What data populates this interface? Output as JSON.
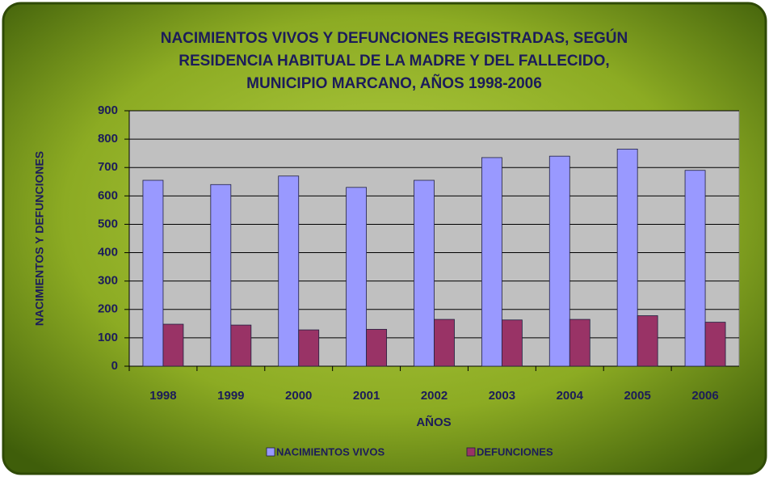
{
  "chart_data": {
    "type": "bar",
    "title": [
      "NACIMIENTOS VIVOS Y DEFUNCIONES REGISTRADAS, SEGÚN",
      "RESIDENCIA HABITUAL DE LA MADRE Y DEL FALLECIDO,",
      "MUNICIPIO MARCANO, AÑOS 1998-2006"
    ],
    "x_label": "AÑOS",
    "y_label": "NACIMIENTOS Y DEFUNCIONES",
    "categories": [
      "1998",
      "1999",
      "2000",
      "2001",
      "2002",
      "2003",
      "2004",
      "2005",
      "2006"
    ],
    "series": [
      {
        "name": "NACIMIENTOS VIVOS",
        "color": "#9999ff",
        "values": [
          655,
          640,
          670,
          630,
          655,
          735,
          740,
          765,
          690
        ]
      },
      {
        "name": "DEFUNCIONES",
        "color": "#993366",
        "values": [
          148,
          145,
          128,
          130,
          165,
          163,
          165,
          178,
          155
        ]
      }
    ],
    "ylim": [
      0,
      900
    ],
    "yticks": [
      0,
      100,
      200,
      300,
      400,
      500,
      600,
      700,
      800,
      900
    ],
    "grid": true,
    "legend": "bottom"
  }
}
